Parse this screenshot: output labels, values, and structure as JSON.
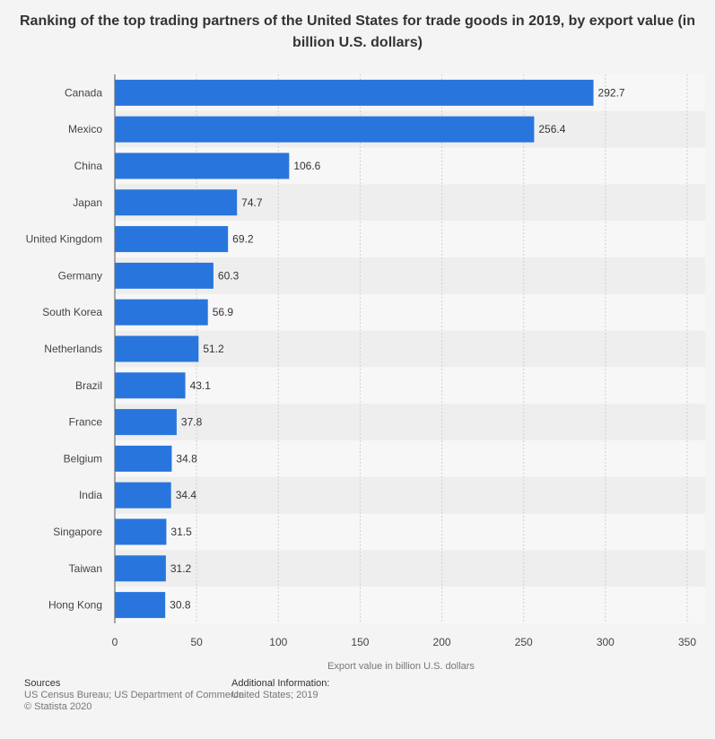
{
  "chart_data": {
    "type": "bar",
    "orientation": "horizontal",
    "title": "Ranking of the top trading partners of the United States for trade goods in 2019, by export value (in billion U.S. dollars)",
    "categories": [
      "Canada",
      "Mexico",
      "China",
      "Japan",
      "United Kingdom",
      "Germany",
      "South Korea",
      "Netherlands",
      "Brazil",
      "France",
      "Belgium",
      "India",
      "Singapore",
      "Taiwan",
      "Hong Kong"
    ],
    "values": [
      292.7,
      256.4,
      106.6,
      74.7,
      69.2,
      60.3,
      56.9,
      51.2,
      43.1,
      37.8,
      34.8,
      34.4,
      31.5,
      31.2,
      30.8
    ],
    "value_labels": [
      "292.7",
      "256.4",
      "106.6",
      "74.7",
      "69.2",
      "60.3",
      "56.9",
      "51.2",
      "43.1",
      "37.8",
      "34.8",
      "34.4",
      "31.5",
      "31.2",
      "30.8"
    ],
    "xlabel": "Export value in billion U.S. dollars",
    "ylabel": "",
    "xlim": [
      0,
      350
    ],
    "xticks": [
      0,
      50,
      100,
      150,
      200,
      250,
      300,
      350
    ],
    "xtick_labels": [
      "0",
      "50",
      "100",
      "150",
      "200",
      "250",
      "300",
      "350"
    ],
    "grid": true,
    "bar_color": "#2876dd",
    "stripe_color": "#eeeeee"
  },
  "footer": {
    "sources_heading": "Sources",
    "sources_line1": "US Census Bureau; US Department of Commerce",
    "sources_line2": "© Statista 2020",
    "additional_heading": "Additional Information:",
    "additional_line1": "United States; 2019"
  }
}
